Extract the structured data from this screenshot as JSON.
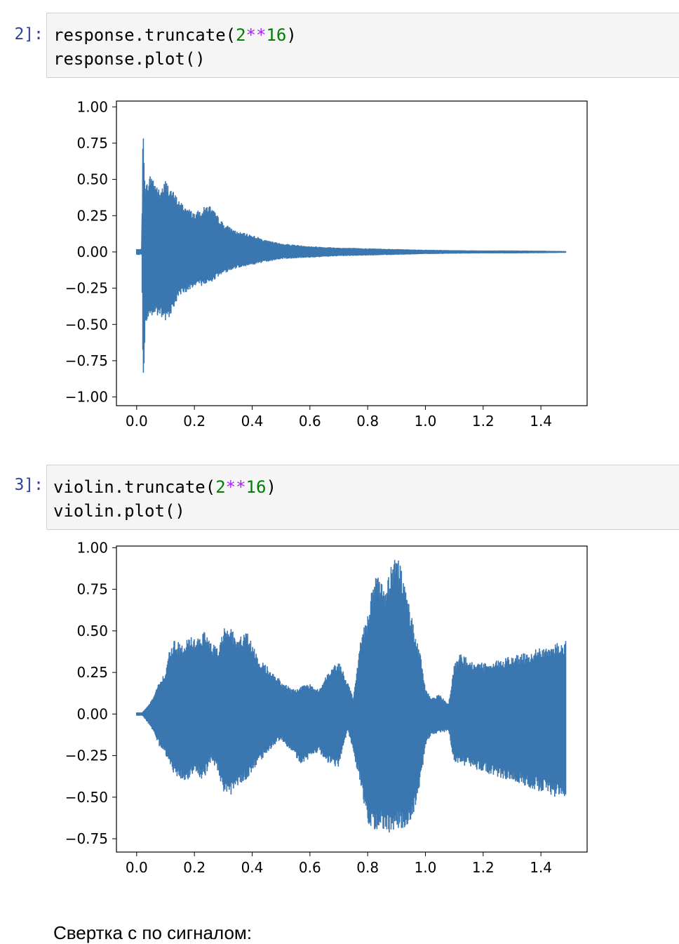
{
  "cells": [
    {
      "prompt": "2]:",
      "code": [
        [
          {
            "t": "response.truncate("
          },
          {
            "t": "2",
            "c": "num"
          },
          {
            "t": "**",
            "c": "op"
          },
          {
            "t": "16",
            "c": "num"
          },
          {
            "t": ")"
          }
        ],
        [
          {
            "t": "response.plot()"
          }
        ]
      ]
    },
    {
      "prompt": "3]:",
      "code": [
        [
          {
            "t": "violin.truncate("
          },
          {
            "t": "2",
            "c": "num"
          },
          {
            "t": "**",
            "c": "op"
          },
          {
            "t": "16",
            "c": "num"
          },
          {
            "t": ")"
          }
        ],
        [
          {
            "t": "violin.plot()"
          }
        ]
      ]
    }
  ],
  "chart_data": [
    {
      "type": "line",
      "description_series": "response waveform",
      "color": "#3a76af",
      "xlim": [
        -0.07,
        1.56
      ],
      "ylim": [
        -1.06,
        1.04
      ],
      "xticks": [
        0.0,
        0.2,
        0.4,
        0.6,
        0.8,
        1.0,
        1.2,
        1.4
      ],
      "xtick_labels": [
        "0.0",
        "0.2",
        "0.4",
        "0.6",
        "0.8",
        "1.0",
        "1.2",
        "1.4"
      ],
      "yticks": [
        1.0,
        0.75,
        0.5,
        0.25,
        0.0,
        -0.25,
        -0.5,
        -0.75,
        -1.0
      ],
      "ytick_labels": [
        "1.00",
        "0.75",
        "0.50",
        "0.25",
        "0.00",
        "−0.25",
        "−0.50",
        "−0.75",
        "−1.00"
      ],
      "x_end": 1.486,
      "envelope": {
        "x": [
          0.0,
          0.018,
          0.022,
          0.03,
          0.05,
          0.08,
          0.1,
          0.15,
          0.2,
          0.25,
          0.3,
          0.35,
          0.4,
          0.45,
          0.5,
          0.6,
          0.7,
          0.8,
          0.9,
          1.0,
          1.1,
          1.2,
          1.3,
          1.4,
          1.486
        ],
        "upper": [
          0.02,
          0.02,
          0.92,
          0.45,
          0.55,
          0.42,
          0.5,
          0.35,
          0.27,
          0.33,
          0.2,
          0.14,
          0.12,
          0.08,
          0.06,
          0.04,
          0.03,
          0.025,
          0.02,
          0.015,
          0.012,
          0.01,
          0.01,
          0.008,
          0.005
        ],
        "lower": [
          -0.02,
          -0.02,
          -1.0,
          -0.5,
          -0.45,
          -0.45,
          -0.5,
          -0.3,
          -0.25,
          -0.22,
          -0.15,
          -0.11,
          -0.09,
          -0.07,
          -0.05,
          -0.04,
          -0.03,
          -0.025,
          -0.02,
          -0.015,
          -0.012,
          -0.01,
          -0.01,
          -0.008,
          -0.005
        ]
      }
    },
    {
      "type": "line",
      "description_series": "violin waveform",
      "color": "#3a76af",
      "xlim": [
        -0.07,
        1.56
      ],
      "ylim": [
        -0.83,
        1.01
      ],
      "xticks": [
        0.0,
        0.2,
        0.4,
        0.6,
        0.8,
        1.0,
        1.2,
        1.4
      ],
      "xtick_labels": [
        "0.0",
        "0.2",
        "0.4",
        "0.6",
        "0.8",
        "1.0",
        "1.2",
        "1.4"
      ],
      "yticks": [
        1.0,
        0.75,
        0.5,
        0.25,
        0.0,
        -0.25,
        -0.5,
        -0.75
      ],
      "ytick_labels": [
        "1.00",
        "0.75",
        "0.50",
        "0.25",
        "0.00",
        "−0.25",
        "−0.50",
        "−0.75"
      ],
      "x_end": 1.486,
      "envelope": {
        "x": [
          0.0,
          0.02,
          0.05,
          0.08,
          0.1,
          0.11,
          0.13,
          0.16,
          0.18,
          0.2,
          0.23,
          0.26,
          0.28,
          0.3,
          0.32,
          0.35,
          0.38,
          0.42,
          0.46,
          0.5,
          0.54,
          0.57,
          0.6,
          0.63,
          0.66,
          0.7,
          0.73,
          0.75,
          0.78,
          0.8,
          0.82,
          0.84,
          0.86,
          0.88,
          0.9,
          0.92,
          0.95,
          0.98,
          1.0,
          1.02,
          1.05,
          1.08,
          1.1,
          1.12,
          1.16,
          1.2,
          1.25,
          1.3,
          1.35,
          1.4,
          1.45,
          1.486
        ],
        "upper": [
          0.01,
          0.01,
          0.08,
          0.2,
          0.25,
          0.38,
          0.45,
          0.42,
          0.48,
          0.45,
          0.5,
          0.44,
          0.4,
          0.52,
          0.55,
          0.45,
          0.5,
          0.35,
          0.28,
          0.2,
          0.15,
          0.17,
          0.18,
          0.15,
          0.25,
          0.32,
          0.2,
          0.1,
          0.5,
          0.6,
          0.8,
          0.85,
          0.75,
          0.88,
          1.0,
          0.85,
          0.6,
          0.4,
          0.15,
          0.1,
          0.12,
          0.06,
          0.3,
          0.37,
          0.32,
          0.31,
          0.33,
          0.35,
          0.37,
          0.4,
          0.43,
          0.44
        ],
        "lower": [
          -0.01,
          -0.01,
          -0.08,
          -0.2,
          -0.25,
          -0.3,
          -0.38,
          -0.4,
          -0.4,
          -0.35,
          -0.4,
          -0.28,
          -0.35,
          -0.5,
          -0.5,
          -0.45,
          -0.4,
          -0.3,
          -0.22,
          -0.15,
          -0.25,
          -0.3,
          -0.28,
          -0.23,
          -0.3,
          -0.32,
          -0.1,
          -0.22,
          -0.48,
          -0.65,
          -0.7,
          -0.7,
          -0.7,
          -0.72,
          -0.7,
          -0.7,
          -0.68,
          -0.45,
          -0.2,
          -0.12,
          -0.12,
          -0.1,
          -0.3,
          -0.3,
          -0.33,
          -0.35,
          -0.38,
          -0.41,
          -0.44,
          -0.47,
          -0.5,
          -0.51
        ]
      }
    }
  ],
  "markdown_text": "Свертка с по сигналом:"
}
